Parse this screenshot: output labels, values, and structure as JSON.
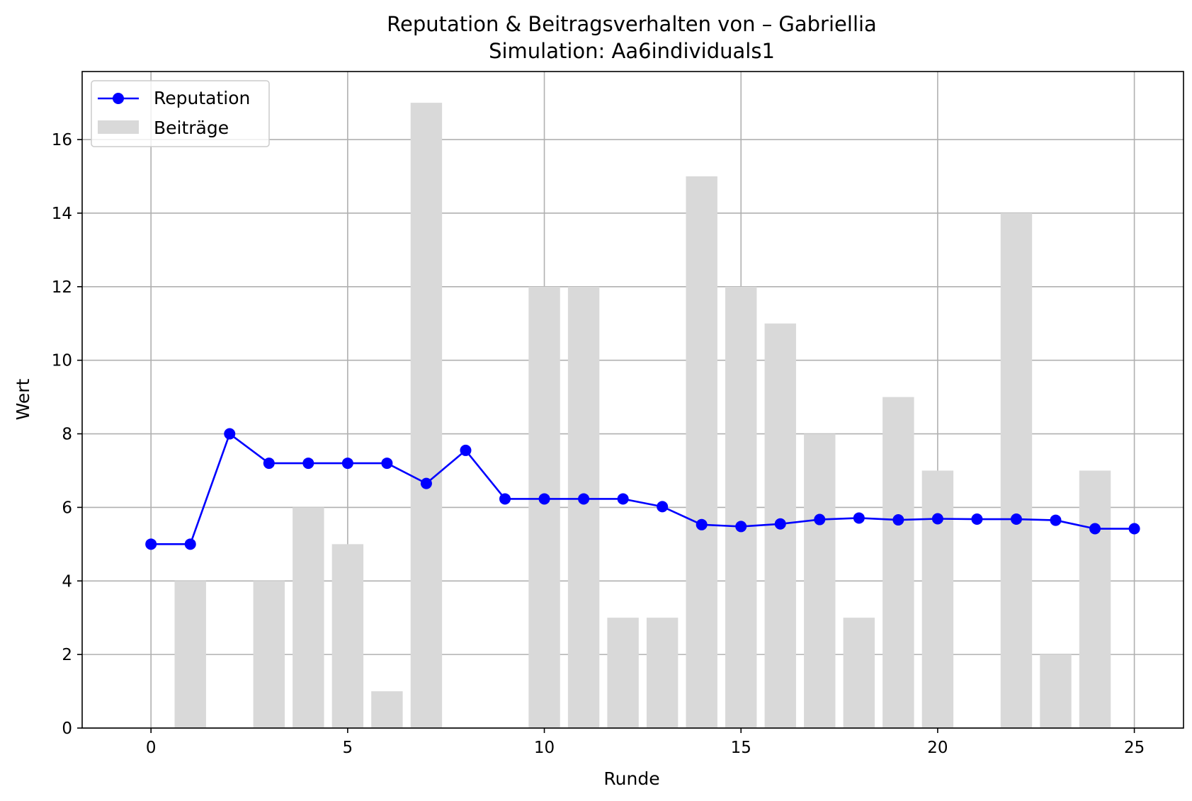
{
  "chart_data": {
    "type": "bar",
    "title": "Reputation & Beitragsverhalten von – Gabriellia",
    "subtitle": "Simulation: Aa6individuals1",
    "xlabel": "Runde",
    "ylabel": "Wert",
    "xlim": [
      -1.75,
      26.25
    ],
    "ylim": [
      0,
      17.85
    ],
    "xticks": [
      0,
      5,
      10,
      15,
      20,
      25
    ],
    "yticks": [
      0,
      2,
      4,
      6,
      8,
      10,
      12,
      14,
      16
    ],
    "grid": true,
    "legend_position": "top-left",
    "x": [
      0,
      1,
      2,
      3,
      4,
      5,
      6,
      7,
      8,
      9,
      10,
      11,
      12,
      13,
      14,
      15,
      16,
      17,
      18,
      19,
      20,
      21,
      22,
      23,
      24,
      25
    ],
    "series": [
      {
        "name": "Reputation",
        "type": "line",
        "marker": "circle",
        "color": "#0000ff",
        "values": [
          5.0,
          5.0,
          8.0,
          7.2,
          7.2,
          7.2,
          7.2,
          6.65,
          7.55,
          6.23,
          6.23,
          6.23,
          6.23,
          6.02,
          5.53,
          5.48,
          5.55,
          5.67,
          5.71,
          5.66,
          5.69,
          5.68,
          5.68,
          5.65,
          5.42,
          5.42
        ]
      },
      {
        "name": "Beiträge",
        "type": "bar",
        "color": "#d9d9d9",
        "values": [
          0,
          4,
          0,
          4,
          6,
          5,
          1,
          17,
          0,
          0,
          12,
          12,
          3,
          3,
          15,
          12,
          11,
          8,
          3,
          9,
          7,
          0,
          14,
          2,
          7,
          0
        ]
      }
    ]
  }
}
